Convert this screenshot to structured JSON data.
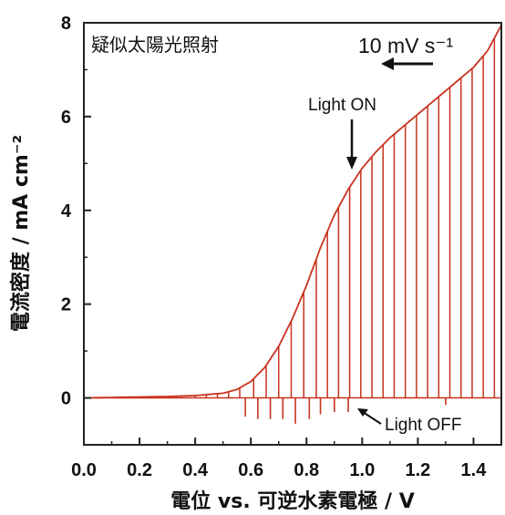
{
  "chart_data": {
    "type": "line",
    "title": "疑似太陽光照射",
    "xlabel": "電位 vs. 可逆水素電極 / V",
    "ylabel": "電流密度 / mA cm⁻²",
    "xlim": [
      0.0,
      1.5
    ],
    "ylim": [
      -1.0,
      8.0
    ],
    "xticks": [
      "0.0",
      "0.2",
      "0.4",
      "0.6",
      "0.8",
      "1.0",
      "1.2",
      "1.4"
    ],
    "yticks": [
      "0",
      "2",
      "4",
      "6",
      "8"
    ],
    "grid": false,
    "series": [
      {
        "color": "#c8321e",
        "x": [
          0.0,
          0.1,
          0.2,
          0.3,
          0.4,
          0.5,
          0.55,
          0.6,
          0.65,
          0.7,
          0.75,
          0.8,
          0.85,
          0.9,
          0.95,
          1.0,
          1.05,
          1.1,
          1.15,
          1.2,
          1.25,
          1.3,
          1.35,
          1.4,
          1.45,
          1.5
        ],
        "y": [
          0.0,
          0.01,
          0.02,
          0.03,
          0.05,
          0.1,
          0.18,
          0.35,
          0.65,
          1.1,
          1.7,
          2.4,
          3.2,
          3.9,
          4.45,
          4.9,
          5.25,
          5.55,
          5.8,
          6.05,
          6.3,
          6.55,
          6.8,
          7.05,
          7.4,
          7.95
        ]
      }
    ],
    "light_toggle_potentials": [
      0.11,
      0.15,
      0.22,
      0.26,
      0.31,
      0.35,
      0.4,
      0.44,
      0.48,
      0.52,
      0.56,
      0.61,
      0.655,
      0.7,
      0.745,
      0.79,
      0.835,
      0.875,
      0.915,
      0.955,
      0.995,
      1.035,
      1.075,
      1.115,
      1.155,
      1.195,
      1.235,
      1.275,
      1.315,
      1.355,
      1.395,
      1.435,
      1.475
    ],
    "dark_dips": [
      {
        "x": 0.58,
        "y": -0.4
      },
      {
        "x": 0.625,
        "y": -0.45
      },
      {
        "x": 0.67,
        "y": -0.45
      },
      {
        "x": 0.715,
        "y": -0.45
      },
      {
        "x": 0.76,
        "y": -0.55
      },
      {
        "x": 0.81,
        "y": -0.45
      },
      {
        "x": 0.85,
        "y": -0.35
      },
      {
        "x": 0.9,
        "y": -0.3
      },
      {
        "x": 0.95,
        "y": -0.3
      },
      {
        "x": 1.3,
        "y": -0.15
      }
    ],
    "annotations": {
      "scan_rate": "10 mV s⁻¹",
      "light_on": "Light ON",
      "light_off": "Light OFF"
    }
  }
}
